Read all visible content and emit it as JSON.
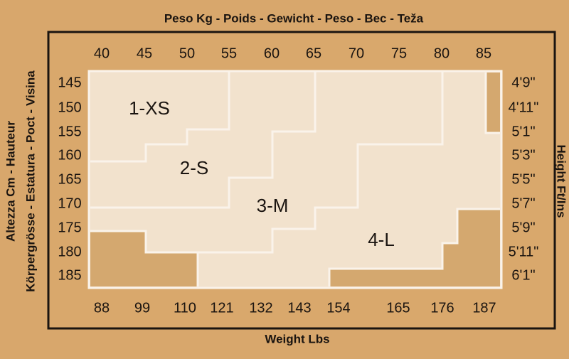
{
  "header": {
    "title": "Peso Kg - Poids - Gewicht - Peso - Bec - Teža"
  },
  "footer": {
    "title": "Weight Lbs"
  },
  "left": {
    "line1": "Altezza Cm - Hauteur",
    "line2": "Körpergrösse - Estatura - Poct - Visina"
  },
  "right": {
    "title": "Height Ft/Ins"
  },
  "kg": [
    "40",
    "45",
    "50",
    "55",
    "60",
    "65",
    "70",
    "75",
    "80",
    "85"
  ],
  "lbs": [
    "88",
    "99",
    "110",
    "121",
    "132",
    "143",
    "154",
    "165",
    "176",
    "187"
  ],
  "cm": [
    "145",
    "150",
    "155",
    "160",
    "165",
    "170",
    "175",
    "180",
    "185"
  ],
  "ft": [
    "4'9\"",
    "4'11\"",
    "5'1\"",
    "5'3\"",
    "5'5\"",
    "5'7\"",
    "5'9\"",
    "5'11\"",
    "6'1\""
  ],
  "sizes": [
    "1-XS",
    "2-S",
    "3-M",
    "4-L"
  ]
}
